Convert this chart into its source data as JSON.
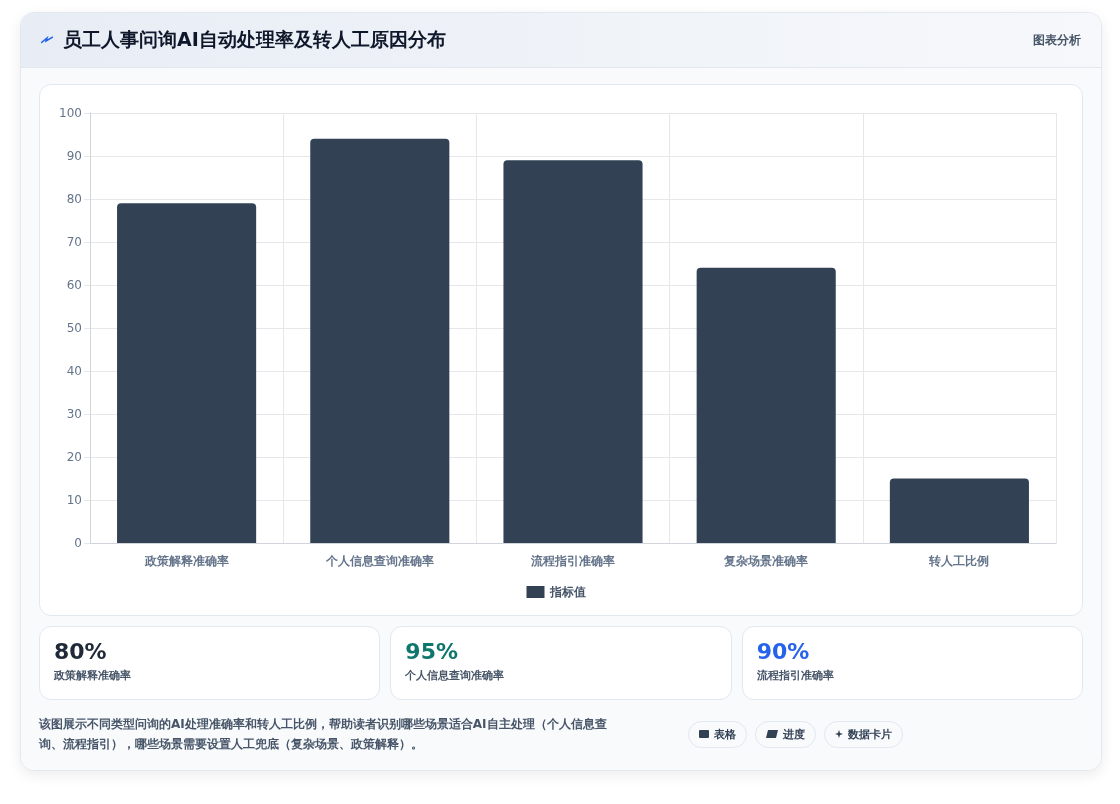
{
  "chart_data": {
    "type": "bar",
    "title": "员工人事问询AI自动处理率及转人工原因分布",
    "categories": [
      "政策解释准确率",
      "个人信息查询准确率",
      "流程指引准确率",
      "复杂场景准确率",
      "转人工比例"
    ],
    "series": [
      {
        "name": "指标值",
        "color": "#334155",
        "values": [
          79,
          94,
          89,
          64,
          15
        ]
      }
    ],
    "ylim": [
      0,
      100
    ],
    "yticks": [
      0,
      10,
      20,
      30,
      40,
      50,
      60,
      70,
      80,
      90,
      100
    ],
    "grid": true,
    "legend": "bottom",
    "annotations": [
      "图表分析",
      "80%",
      "政策解释准确率",
      "95%",
      "个人信息查询准确率",
      "90%",
      "流程指引准确率",
      "该图展示不同类型问询的AI处理准确率和转人工比例，帮助读者识别哪些场景适合AI自主处理（个人信息查询、流程指引），哪些场景需要设置人工兜底（复杂场景、政策解释）。",
      "表格",
      "进度",
      "数据卡片"
    ]
  }
}
